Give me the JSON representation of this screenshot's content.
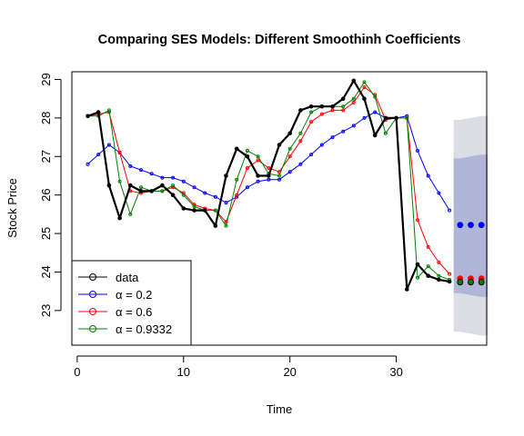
{
  "chart_data": {
    "type": "line",
    "title": "Comparing SES Models: Different Smoothinh Coefficients",
    "xlabel": "Time",
    "ylabel": "Stock Price",
    "xlim": [
      -0.5,
      38.5
    ],
    "ylim": [
      22.1,
      29.2
    ],
    "x_ticks": [
      0,
      10,
      20,
      30
    ],
    "y_ticks": [
      23,
      24,
      25,
      26,
      27,
      28,
      29
    ],
    "grid": false,
    "legend_position": "bottom-left",
    "legend": [
      {
        "label": "data",
        "color": "#000000"
      },
      {
        "label": "α = 0.2",
        "color": "#0000ff"
      },
      {
        "label": "α = 0.6",
        "color": "#ff0000"
      },
      {
        "label": "α = 0.9332",
        "color": "#008000"
      }
    ],
    "series": [
      {
        "name": "data",
        "color": "#000000",
        "x": [
          1,
          2,
          3,
          4,
          5,
          6,
          7,
          8,
          9,
          10,
          11,
          12,
          13,
          14,
          15,
          16,
          17,
          18,
          19,
          20,
          21,
          22,
          23,
          24,
          25,
          26,
          27,
          28,
          29,
          30,
          31,
          32,
          33,
          34,
          35
        ],
        "y": [
          28.05,
          28.15,
          26.25,
          25.4,
          26.25,
          26.1,
          26.1,
          26.25,
          26.0,
          25.65,
          25.6,
          25.6,
          25.2,
          26.5,
          27.2,
          27.0,
          26.5,
          26.5,
          27.3,
          27.6,
          28.2,
          28.3,
          28.3,
          28.3,
          28.5,
          28.97,
          28.5,
          27.55,
          28.0,
          28.0,
          23.55,
          24.2,
          23.9,
          23.8,
          23.75
        ]
      },
      {
        "name": "α = 0.2",
        "color": "#0000ff",
        "x": [
          1,
          2,
          3,
          4,
          5,
          6,
          7,
          8,
          9,
          10,
          11,
          12,
          13,
          14,
          15,
          16,
          17,
          18,
          19,
          20,
          21,
          22,
          23,
          24,
          25,
          26,
          27,
          28,
          29,
          30,
          31,
          32,
          33,
          34,
          35
        ],
        "y": [
          26.8,
          27.05,
          27.3,
          27.1,
          26.75,
          26.65,
          26.55,
          26.45,
          26.45,
          26.35,
          26.2,
          26.05,
          25.95,
          25.8,
          25.95,
          26.2,
          26.35,
          26.4,
          26.4,
          26.6,
          26.8,
          27.05,
          27.3,
          27.5,
          27.65,
          27.8,
          28.0,
          28.15,
          28.0,
          28.0,
          28.05,
          27.15,
          26.5,
          26.05,
          25.6
        ]
      },
      {
        "name": "α = 0.6",
        "color": "#ff0000",
        "x": [
          1,
          2,
          3,
          4,
          5,
          6,
          7,
          8,
          9,
          10,
          11,
          12,
          13,
          14,
          15,
          16,
          17,
          18,
          19,
          20,
          21,
          22,
          23,
          24,
          25,
          26,
          27,
          28,
          29,
          30,
          31,
          32,
          33,
          34,
          35
        ],
        "y": [
          28.05,
          28.1,
          28.15,
          27.1,
          26.1,
          26.05,
          26.1,
          26.1,
          26.2,
          26.05,
          25.75,
          25.65,
          25.6,
          25.3,
          26.0,
          26.7,
          26.9,
          26.7,
          26.6,
          27.0,
          27.4,
          27.9,
          28.1,
          28.2,
          28.2,
          28.4,
          28.8,
          28.6,
          27.95,
          28.0,
          28.0,
          25.35,
          24.65,
          24.25,
          23.95
        ]
      },
      {
        "name": "α = 0.9332",
        "color": "#008000",
        "x": [
          1,
          2,
          3,
          4,
          5,
          6,
          7,
          8,
          9,
          10,
          11,
          12,
          13,
          14,
          15,
          16,
          17,
          18,
          19,
          20,
          21,
          22,
          23,
          24,
          25,
          26,
          27,
          28,
          29,
          30,
          31,
          32,
          33,
          34,
          35
        ],
        "y": [
          28.05,
          28.05,
          28.2,
          26.35,
          25.5,
          26.2,
          26.1,
          26.1,
          26.25,
          26.0,
          25.7,
          25.6,
          25.6,
          25.2,
          26.4,
          27.15,
          27.0,
          26.55,
          26.5,
          27.2,
          27.6,
          28.15,
          28.3,
          28.3,
          28.3,
          28.5,
          28.93,
          28.55,
          27.6,
          28.0,
          28.0,
          23.85,
          24.15,
          23.9,
          23.8
        ]
      }
    ],
    "forecast": {
      "x": [
        36,
        37,
        38
      ],
      "outer_band": {
        "color": "#dcdce4",
        "lower": [
          22.45,
          22.4,
          22.35
        ],
        "upper": [
          27.95,
          28.0,
          28.05
        ]
      },
      "inner_band": {
        "color": "#b0b6d8",
        "lower": [
          23.45,
          23.4,
          23.35
        ],
        "upper": [
          26.95,
          27.0,
          27.05
        ]
      },
      "points": [
        {
          "name": "α = 0.2",
          "color": "#0000ff",
          "y": [
            25.22,
            25.22,
            25.22
          ]
        },
        {
          "name": "α = 0.6",
          "color": "#ff0000",
          "y": [
            23.83,
            23.83,
            23.83
          ]
        },
        {
          "name": "data",
          "color": "#000000",
          "y": [
            23.73,
            23.73,
            23.73
          ]
        },
        {
          "name": "α = 0.9332",
          "color": "#008000",
          "y": [
            23.74,
            23.74,
            23.74
          ]
        }
      ]
    }
  }
}
